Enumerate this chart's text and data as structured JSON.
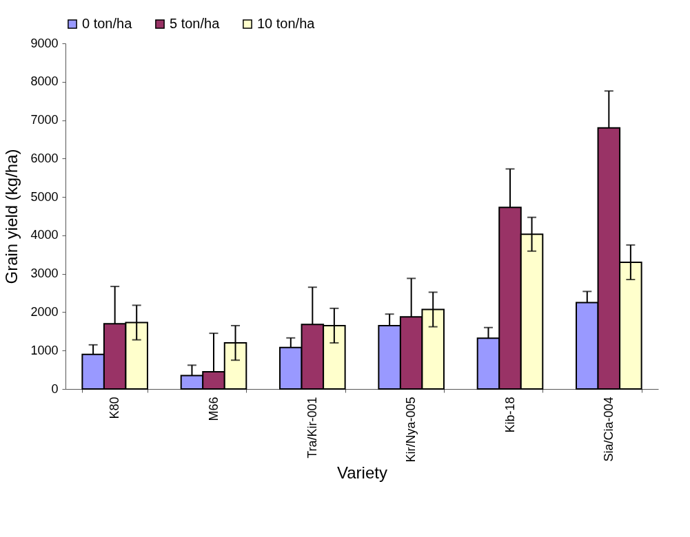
{
  "chart_data": {
    "type": "bar",
    "xlabel": "Variety",
    "ylabel": "Grain yield (kg/ha)",
    "categories": [
      "K80",
      "M66",
      "Tra/Kir-001",
      "Kir/Nya-005",
      "Kib-18",
      "Sia/Cia-004"
    ],
    "series": [
      {
        "name": "0 ton/ha",
        "color": "#9999ff",
        "values": [
          900,
          350,
          1080,
          1650,
          1320,
          2250
        ],
        "errors": [
          [
            900,
            1150
          ],
          [
            350,
            620
          ],
          [
            1080,
            1330
          ],
          [
            1650,
            1950
          ],
          [
            1320,
            1600
          ],
          [
            2250,
            2540
          ]
        ]
      },
      {
        "name": "5 ton/ha",
        "color": "#993366",
        "values": [
          1700,
          450,
          1680,
          1880,
          4730,
          6800
        ],
        "errors": [
          [
            1700,
            2670
          ],
          [
            450,
            1450
          ],
          [
            1680,
            2650
          ],
          [
            1880,
            2880
          ],
          [
            4730,
            5730
          ],
          [
            6800,
            7760
          ]
        ]
      },
      {
        "name": "10 ton/ha",
        "color": "#ffffcc",
        "values": [
          1730,
          1200,
          1650,
          2070,
          4030,
          3300
        ],
        "errors": [
          450,
          450,
          450,
          450,
          440,
          450
        ]
      }
    ],
    "ylim": [
      0,
      9000
    ],
    "yticks": [
      0,
      1000,
      2000,
      3000,
      4000,
      5000,
      6000,
      7000,
      8000,
      9000
    ],
    "grid": false,
    "legend": "top"
  }
}
